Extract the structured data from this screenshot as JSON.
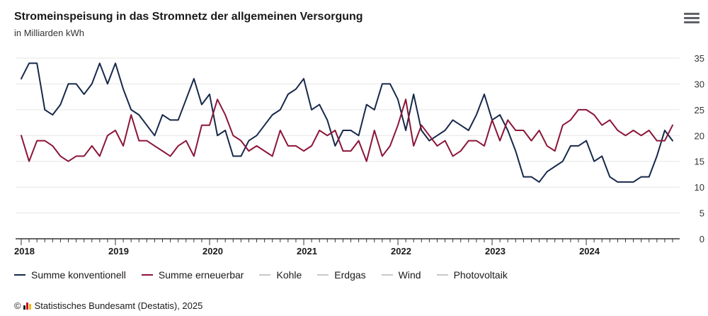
{
  "header": {
    "title": "Stromeinspeisung in das Stromnetz der allgemeinen Versorgung",
    "subtitle": "in Milliarden kWh"
  },
  "legend": [
    {
      "label": "Summe konventionell",
      "color": "#17294a",
      "active": true
    },
    {
      "label": "Summe erneuerbar",
      "color": "#8b1538",
      "active": true
    },
    {
      "label": "Kohle",
      "color": "#c8c8c8",
      "active": false
    },
    {
      "label": "Erdgas",
      "color": "#c8c8c8",
      "active": false
    },
    {
      "label": "Wind",
      "color": "#c8c8c8",
      "active": false
    },
    {
      "label": "Photovoltaik",
      "color": "#c8c8c8",
      "active": false
    }
  ],
  "footer": {
    "copyright_symbol": "©",
    "source": "Statistisches Bundesamt (Destatis), 2025"
  },
  "menu_icon": "hamburger-menu-icon",
  "chart_data": {
    "type": "line",
    "title": "Stromeinspeisung in das Stromnetz der allgemeinen Versorgung",
    "subtitle": "in Milliarden kWh",
    "x_start": "2018-01",
    "x_end": "2024-11",
    "x_ticks": [
      "2018",
      "2019",
      "2020",
      "2021",
      "2022",
      "2023",
      "2024"
    ],
    "y_ticks": [
      0,
      5,
      10,
      15,
      20,
      25,
      30,
      35
    ],
    "ylim": [
      0,
      35
    ],
    "grid": true,
    "legend_position": "bottom",
    "series": [
      {
        "name": "Summe konventionell",
        "color": "#17294a",
        "values": [
          31,
          34,
          34,
          25,
          24,
          26,
          30,
          30,
          28,
          30,
          34,
          30,
          34,
          29,
          25,
          24,
          22,
          20,
          24,
          23,
          23,
          27,
          31,
          26,
          28,
          20,
          21,
          16,
          16,
          19,
          20,
          22,
          24,
          25,
          28,
          29,
          31,
          25,
          26,
          23,
          18,
          21,
          21,
          20,
          26,
          25,
          30,
          30,
          27,
          21,
          28,
          21,
          19,
          20,
          21,
          23,
          22,
          21,
          24,
          28,
          23,
          24,
          21,
          17,
          12,
          12,
          11,
          13,
          14,
          15,
          18,
          18,
          19,
          15,
          16,
          12,
          11,
          11,
          11,
          12,
          12,
          16,
          21,
          19
        ]
      },
      {
        "name": "Summe erneuerbar",
        "color": "#8b1538",
        "values": [
          20,
          15,
          19,
          19,
          18,
          16,
          15,
          16,
          16,
          18,
          16,
          20,
          21,
          18,
          24,
          19,
          19,
          18,
          17,
          16,
          18,
          19,
          16,
          22,
          22,
          27,
          24,
          20,
          19,
          17,
          18,
          17,
          16,
          21,
          18,
          18,
          17,
          18,
          21,
          20,
          21,
          17,
          17,
          19,
          15,
          21,
          16,
          18,
          22,
          27,
          18,
          22,
          20,
          18,
          19,
          16,
          17,
          19,
          19,
          18,
          23,
          19,
          23,
          21,
          21,
          19,
          21,
          18,
          17,
          22,
          23,
          25,
          25,
          24,
          22,
          23,
          21,
          20,
          21,
          20,
          21,
          19,
          19,
          22
        ]
      }
    ]
  }
}
